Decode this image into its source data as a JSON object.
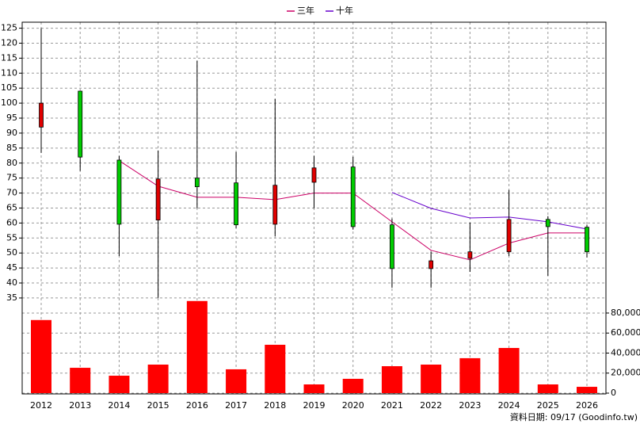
{
  "chart_data": {
    "type": "candlestick",
    "categories": [
      "2012",
      "2013",
      "2014",
      "2015",
      "2016",
      "2017",
      "2018",
      "2019",
      "2020",
      "2021",
      "2022",
      "2023",
      "2024",
      "2025",
      "2026"
    ],
    "open": [
      92,
      104,
      81,
      61,
      75,
      73.4,
      59.6,
      73.6,
      78.7,
      59.4,
      44.8,
      48.2,
      50.4,
      61.2,
      58.6
    ],
    "high": [
      125,
      104,
      82.4,
      84.2,
      114.1,
      83.7,
      101.4,
      82.4,
      82.1,
      61.5,
      50.4,
      60.1,
      71,
      62.3,
      59.4
    ],
    "low": [
      83.4,
      77.4,
      49,
      35,
      64.9,
      58.3,
      55.6,
      64.9,
      57.8,
      38.4,
      38.4,
      43.7,
      49,
      42.4,
      48.5
    ],
    "close": [
      100,
      82,
      59.6,
      74.7,
      72.1,
      59.4,
      72.6,
      78.4,
      58.8,
      44.8,
      47.4,
      50.4,
      61.2,
      58.8,
      50.4
    ],
    "up_color": "#e00000",
    "down_color": "#00cc00",
    "ylim": [
      33,
      127
    ],
    "yticks": [
      35,
      40,
      45,
      50,
      55,
      60,
      65,
      70,
      75,
      80,
      85,
      90,
      95,
      100,
      105,
      110,
      115,
      120,
      125
    ],
    "grid": true,
    "series": [
      {
        "name": "三年",
        "color": "#cc0066",
        "values": [
          null,
          null,
          80.8,
          72.3,
          68.6,
          68.6,
          67.8,
          70,
          70,
          60.4,
          50.9,
          47.7,
          53.3,
          56.7,
          56.7
        ]
      },
      {
        "name": "十年",
        "color": "#6600cc",
        "values": [
          null,
          null,
          null,
          null,
          null,
          null,
          null,
          null,
          null,
          70.2,
          64.9,
          61.7,
          62,
          60.4,
          58
        ]
      }
    ],
    "volume": {
      "color": "#ff0000",
      "values": [
        73000,
        25300,
        17400,
        28500,
        92000,
        23800,
        48300,
        8700,
        14300,
        26900,
        28500,
        34900,
        45100,
        8700,
        6300
      ],
      "ylim": [
        0,
        95000
      ],
      "yticks": [
        0,
        {
          "value": 20000,
          "label": "20,000"
        },
        {
          "value": 40000,
          "label": "40,000"
        },
        {
          "value": 60000,
          "label": "60,000"
        },
        {
          "value": 80000,
          "label": "80,000"
        }
      ]
    },
    "source": "資料日期: 09/17 (Goodinfo.tw)"
  }
}
